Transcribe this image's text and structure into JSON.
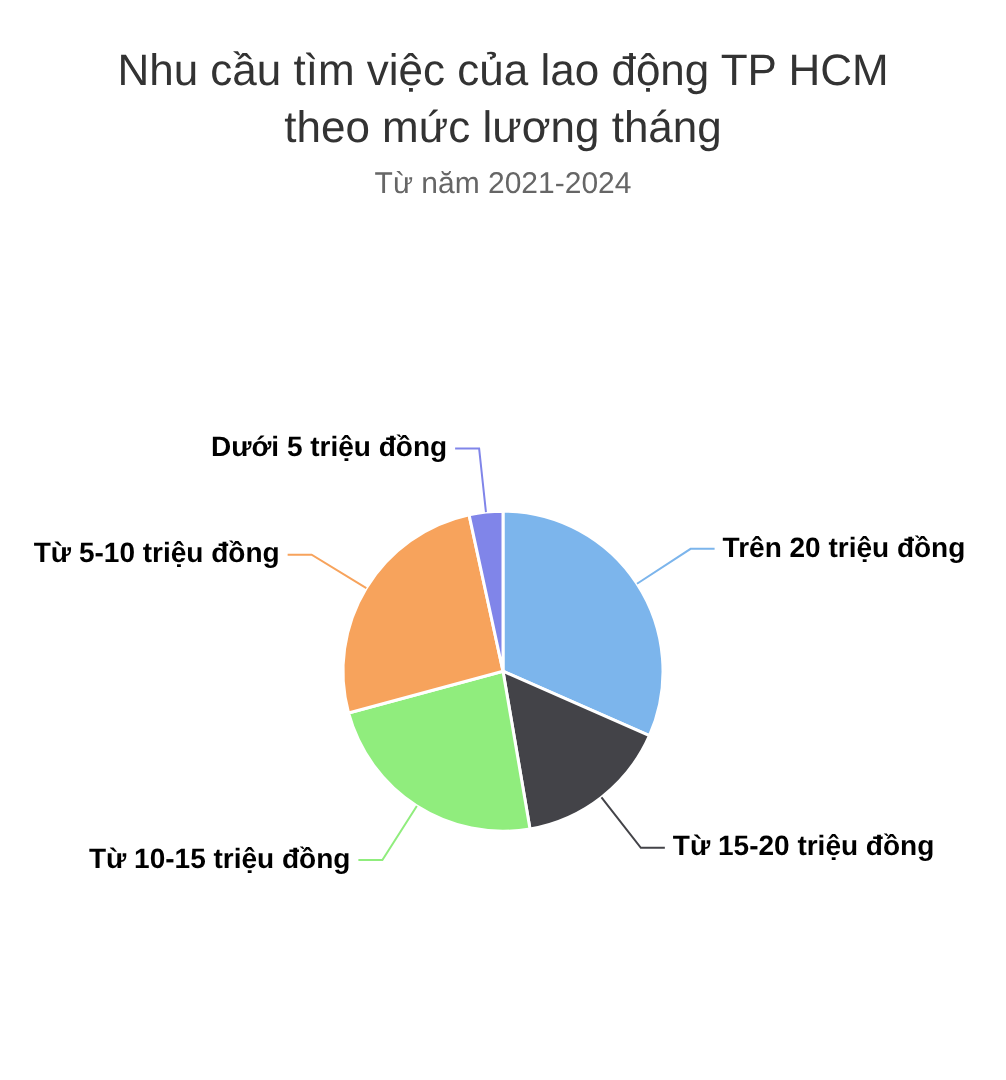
{
  "chart_data": {
    "type": "pie",
    "title": "Nhu cầu tìm việc của lao động TP HCM theo mức lương tháng",
    "subtitle": "Từ năm 2021-2024",
    "categories": [
      "Trên 20 triệu đồng",
      "Từ 15-20 triệu đồng",
      "Từ 10-15 triệu đồng",
      "Từ 5-10 triệu đồng",
      "Dưới 5 triệu đồng"
    ],
    "values": [
      31.6,
      15.7,
      23.5,
      25.8,
      3.4
    ],
    "colors": [
      "#7cb5ec",
      "#434348",
      "#90ed7d",
      "#f7a35c",
      "#8085e9"
    ],
    "legend": false
  }
}
